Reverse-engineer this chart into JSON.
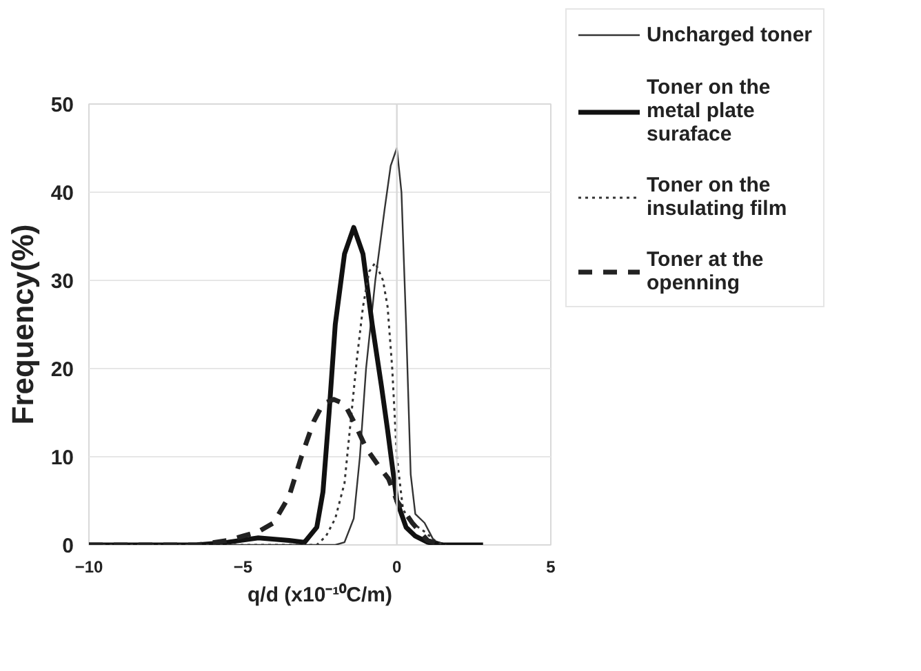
{
  "chart_data": {
    "type": "line",
    "xlabel": "q/d (x10⁻¹⁰C/m)",
    "ylabel": "Frequency(%)",
    "xlim": [
      -10,
      5
    ],
    "ylim": [
      0,
      50
    ],
    "xticks": [
      {
        "value": -10,
        "label": "−10"
      },
      {
        "value": -5,
        "label": "−5"
      },
      0,
      5
    ],
    "yticks": [
      0,
      10,
      20,
      30,
      40,
      50
    ],
    "grid": "y",
    "legend": "right",
    "ref_lines": [
      {
        "axis": "x",
        "value": 0,
        "color": "#d9d9d9"
      }
    ],
    "series": [
      {
        "name": "Uncharged toner",
        "color": "#333333",
        "line_style": "solid",
        "x": [
          -10,
          -2,
          -1.7,
          -1.4,
          -1.2,
          -1,
          -0.7,
          -0.4,
          -0.2,
          0,
          0.15,
          0.3,
          0.45,
          0.6,
          0.9,
          1.2,
          1.6
        ],
        "values": [
          0,
          0,
          0.3,
          3,
          10,
          20,
          30,
          38,
          43,
          45,
          40,
          25,
          8,
          3.5,
          2.5,
          0.5,
          0
        ]
      },
      {
        "name": "Toner on the metal plate suraface",
        "color": "#111111",
        "line_style": "solid",
        "x": [
          -10,
          -6.5,
          -5.5,
          -4.5,
          -3.5,
          -3,
          -2.6,
          -2.4,
          -2.2,
          -2,
          -1.7,
          -1.4,
          -1.1,
          -0.8,
          -0.5,
          -0.3,
          0,
          0.3,
          0.6,
          1,
          1.5,
          2.8
        ],
        "values": [
          0,
          0,
          0.3,
          0.8,
          0.5,
          0.3,
          2,
          6,
          15,
          25,
          33,
          36,
          33,
          25,
          18,
          13,
          5,
          2,
          1,
          0.3,
          0,
          0
        ]
      },
      {
        "name": "Toner on the insulating film",
        "color": "#333333",
        "line_style": "dotted",
        "x": [
          -10,
          -2.6,
          -2.3,
          -2,
          -1.7,
          -1.5,
          -1.3,
          -1.1,
          -0.9,
          -0.7,
          -0.45,
          -0.3,
          -0.15,
          0,
          0.2,
          0.5,
          0.9,
          1.3,
          1.6
        ],
        "values": [
          0,
          0,
          1,
          3,
          7,
          14,
          21,
          27,
          31,
          32,
          30,
          27,
          20,
          10,
          4,
          2.5,
          1.5,
          0.3,
          0
        ]
      },
      {
        "name": "Toner at the openning",
        "color": "#222222",
        "line_style": "dashed",
        "x": [
          -10,
          -6.5,
          -5.5,
          -5,
          -4.5,
          -4,
          -3.5,
          -3.1,
          -2.7,
          -2.4,
          -2.05,
          -1.7,
          -1.4,
          -1,
          -0.6,
          -0.27,
          0,
          0.5,
          1,
          1.5
        ],
        "values": [
          0,
          0,
          0.5,
          1,
          1.5,
          2.5,
          5.5,
          10,
          14,
          16,
          16.5,
          16,
          14,
          11,
          9,
          7.5,
          5,
          2.5,
          0.5,
          0
        ]
      }
    ]
  }
}
